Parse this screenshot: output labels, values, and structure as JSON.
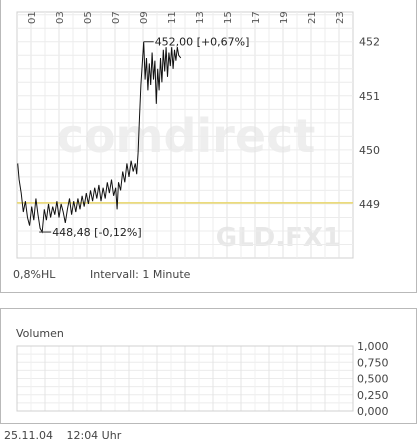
{
  "chart_data": [
    {
      "type": "line",
      "x_tick_labels": [
        "01",
        "03",
        "05",
        "07",
        "09",
        "11",
        "13",
        "15",
        "17",
        "19",
        "21",
        "23"
      ],
      "y_ticks": [
        449,
        450,
        451,
        452
      ],
      "y_tick_labels": [
        "449",
        "450",
        "451",
        "452"
      ],
      "ylim": [
        448.0,
        452.55
      ],
      "xlim": [
        0,
        24
      ],
      "grid": true,
      "reference_line": {
        "value": 449.02,
        "color": "#e8d66a"
      },
      "annotations": {
        "high": {
          "x": 9.05,
          "y": 452.0,
          "label": "452,00 [+0,67%]"
        },
        "low": {
          "x": 1.8,
          "y": 448.48,
          "label": "448,48 [-0,12%]"
        }
      },
      "watermark": [
        "comdirect",
        "GLD.FX1"
      ],
      "series": [
        {
          "color": "#111111",
          "points": [
            [
              0.05,
              449.75
            ],
            [
              0.15,
              449.45
            ],
            [
              0.3,
              449.2
            ],
            [
              0.45,
              448.85
            ],
            [
              0.6,
              449.05
            ],
            [
              0.75,
              448.75
            ],
            [
              0.9,
              448.6
            ],
            [
              1.05,
              448.95
            ],
            [
              1.2,
              448.7
            ],
            [
              1.35,
              449.1
            ],
            [
              1.5,
              448.8
            ],
            [
              1.65,
              448.55
            ],
            [
              1.8,
              448.48
            ],
            [
              1.95,
              448.9
            ],
            [
              2.1,
              448.7
            ],
            [
              2.25,
              449.0
            ],
            [
              2.4,
              448.75
            ],
            [
              2.55,
              448.95
            ],
            [
              2.7,
              448.8
            ],
            [
              2.85,
              449.05
            ],
            [
              3.0,
              448.75
            ],
            [
              3.15,
              449.0
            ],
            [
              3.3,
              448.85
            ],
            [
              3.45,
              448.65
            ],
            [
              3.6,
              448.9
            ],
            [
              3.75,
              449.1
            ],
            [
              3.9,
              448.8
            ],
            [
              4.05,
              449.05
            ],
            [
              4.2,
              448.85
            ],
            [
              4.35,
              449.1
            ],
            [
              4.5,
              448.9
            ],
            [
              4.65,
              449.15
            ],
            [
              4.8,
              448.95
            ],
            [
              4.95,
              449.2
            ],
            [
              5.1,
              449.0
            ],
            [
              5.25,
              449.25
            ],
            [
              5.4,
              449.05
            ],
            [
              5.55,
              449.3
            ],
            [
              5.7,
              449.1
            ],
            [
              5.85,
              449.35
            ],
            [
              6.0,
              449.05
            ],
            [
              6.15,
              449.3
            ],
            [
              6.3,
              449.1
            ],
            [
              6.45,
              449.4
            ],
            [
              6.6,
              449.2
            ],
            [
              6.75,
              449.45
            ],
            [
              6.9,
              449.15
            ],
            [
              7.05,
              449.3
            ],
            [
              7.15,
              448.9
            ],
            [
              7.25,
              449.4
            ],
            [
              7.4,
              449.25
            ],
            [
              7.55,
              449.6
            ],
            [
              7.7,
              449.4
            ],
            [
              7.85,
              449.75
            ],
            [
              8.0,
              449.5
            ],
            [
              8.15,
              449.8
            ],
            [
              8.3,
              449.6
            ],
            [
              8.45,
              449.75
            ],
            [
              8.55,
              449.55
            ],
            [
              8.65,
              449.95
            ],
            [
              8.75,
              450.6
            ],
            [
              8.85,
              451.2
            ],
            [
              8.95,
              451.6
            ],
            [
              9.05,
              452.0
            ],
            [
              9.15,
              451.3
            ],
            [
              9.25,
              451.7
            ],
            [
              9.35,
              451.1
            ],
            [
              9.45,
              451.6
            ],
            [
              9.55,
              451.2
            ],
            [
              9.65,
              451.8
            ],
            [
              9.75,
              451.3
            ],
            [
              9.85,
              451.65
            ],
            [
              9.95,
              450.85
            ],
            [
              10.05,
              451.5
            ],
            [
              10.15,
              451.1
            ],
            [
              10.25,
              451.7
            ],
            [
              10.35,
              451.25
            ],
            [
              10.45,
              451.85
            ],
            [
              10.55,
              451.45
            ],
            [
              10.65,
              451.9
            ],
            [
              10.75,
              451.35
            ],
            [
              10.85,
              451.8
            ],
            [
              10.95,
              451.55
            ],
            [
              11.05,
              451.9
            ],
            [
              11.15,
              451.5
            ],
            [
              11.25,
              451.85
            ],
            [
              11.35,
              451.65
            ],
            [
              11.45,
              451.9
            ],
            [
              11.55,
              451.75
            ],
            [
              11.7,
              451.7
            ]
          ]
        }
      ]
    },
    {
      "type": "bar",
      "title": "Volumen",
      "y_ticks": [
        0,
        0.25,
        0.5,
        0.75,
        1.0
      ],
      "y_tick_labels": [
        "0,000",
        "0,250",
        "0,500",
        "0,750",
        "1,000"
      ],
      "ylim": [
        0,
        1.0
      ],
      "grid": true,
      "values": []
    }
  ],
  "info": {
    "range_label": "0,8%HL",
    "interval_label": "Intervall: 1 Minute"
  },
  "footer": {
    "date": "25.11.04",
    "time": "12:04 Uhr"
  }
}
